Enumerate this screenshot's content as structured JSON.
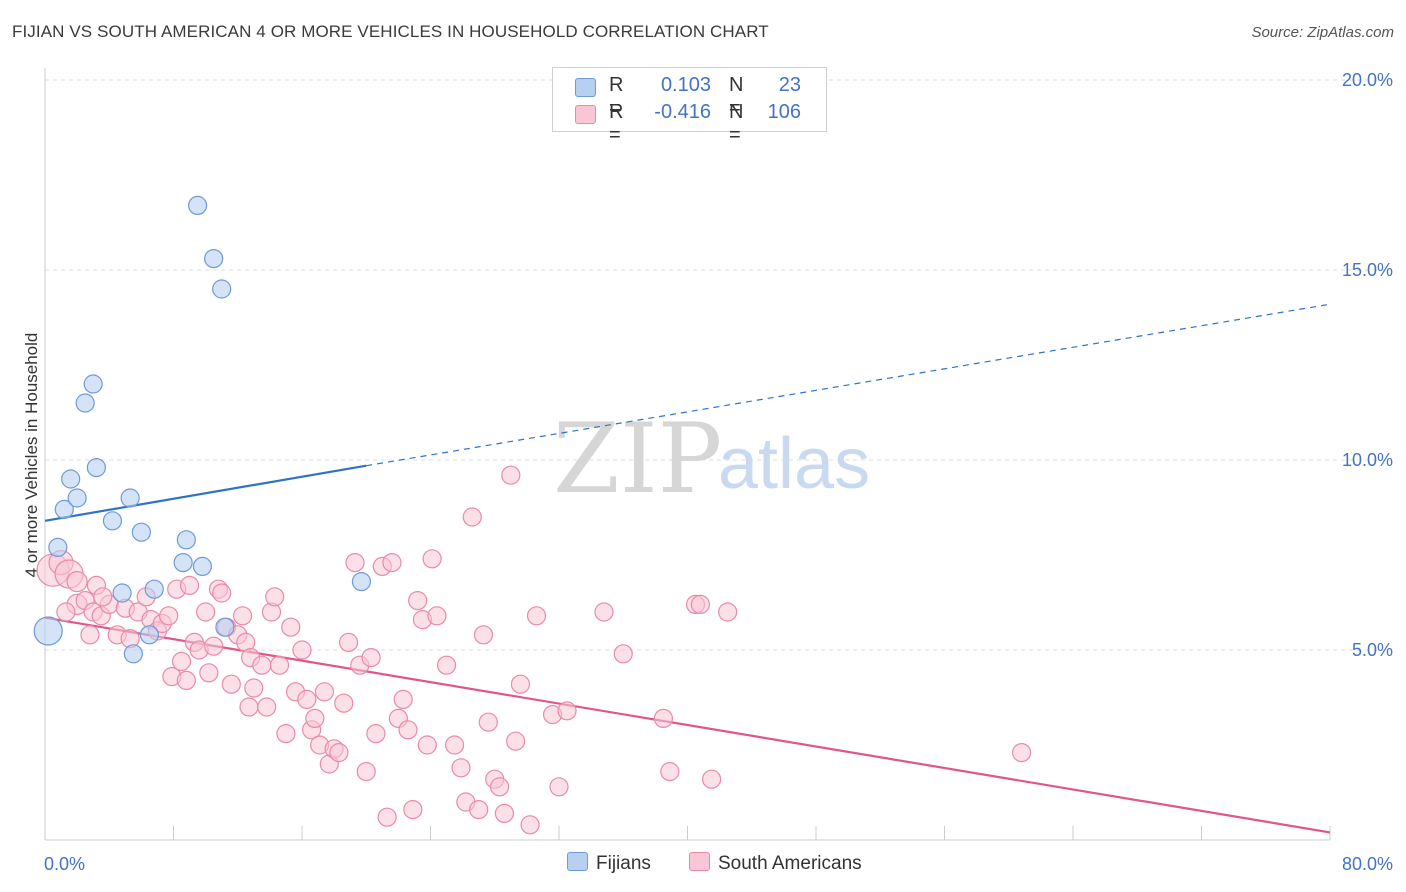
{
  "header": {
    "title": "FIJIAN VS SOUTH AMERICAN 4 OR MORE VEHICLES IN HOUSEHOLD CORRELATION CHART",
    "source": "Source: ZipAtlas.com"
  },
  "watermark": {
    "zip": "ZIP",
    "atlas": "atlas"
  },
  "legend": {
    "rows": [
      {
        "r_label": "R =",
        "r_value": "0.103",
        "n_label": "N =",
        "n_value": "23",
        "color": "#a9c4ea"
      },
      {
        "r_label": "R =",
        "r_value": "-0.416",
        "n_label": "N =",
        "n_value": "106",
        "color": "#f6b7c9"
      }
    ]
  },
  "bottom_legend": {
    "fijians": "Fijians",
    "south_americans": "South Americans"
  },
  "colors": {
    "fijian_fill": "#b8d0f0",
    "fijian_stroke": "#6f9ad8",
    "fijian_line": "#2f72c8",
    "sa_fill": "#f9c6d5",
    "sa_stroke": "#e98aa8",
    "sa_line": "#e0558a",
    "tick": "#4472c4",
    "grid": "#dddddd"
  },
  "chart_data": {
    "type": "scatter",
    "title": "FIJIAN VS SOUTH AMERICAN 4 OR MORE VEHICLES IN HOUSEHOLD CORRELATION CHART",
    "xlabel": "",
    "ylabel": "4 or more Vehicles in Household",
    "xlim": [
      0,
      80
    ],
    "ylim": [
      0,
      20
    ],
    "x_tick_labels": [
      "0.0%",
      "80.0%"
    ],
    "y_ticks": [
      5,
      10,
      15,
      20
    ],
    "y_tick_labels": [
      "5.0%",
      "10.0%",
      "15.0%",
      "20.0%"
    ],
    "grid": true,
    "series": [
      {
        "name": "Fijians",
        "r": 0.103,
        "n": 23,
        "points": [
          [
            0.2,
            5.5,
            14
          ],
          [
            0.8,
            7.7,
            9
          ],
          [
            1.2,
            8.7,
            9
          ],
          [
            1.6,
            9.5,
            9
          ],
          [
            2.0,
            9.0,
            9
          ],
          [
            2.5,
            11.5,
            9
          ],
          [
            3.0,
            12.0,
            9
          ],
          [
            3.2,
            9.8,
            9
          ],
          [
            4.2,
            8.4,
            9
          ],
          [
            4.8,
            6.5,
            9
          ],
          [
            5.3,
            9.0,
            9
          ],
          [
            6.0,
            8.1,
            9
          ],
          [
            6.5,
            5.4,
            9
          ],
          [
            5.5,
            4.9,
            9
          ],
          [
            6.8,
            6.6,
            9
          ],
          [
            8.6,
            7.3,
            9
          ],
          [
            8.8,
            7.9,
            9
          ],
          [
            9.5,
            16.7,
            9
          ],
          [
            9.8,
            7.2,
            9
          ],
          [
            10.5,
            15.3,
            9
          ],
          [
            11.0,
            14.5,
            9
          ],
          [
            11.2,
            5.6,
            9
          ],
          [
            19.7,
            6.8,
            9
          ]
        ],
        "trend": {
          "x0": 0,
          "y0": 8.4,
          "x_solid_end": 20,
          "y_solid_end": 9.85,
          "x1": 80,
          "y1": 14.1
        }
      },
      {
        "name": "South Americans",
        "r": -0.416,
        "n": 106,
        "points": [
          [
            0.5,
            7.1,
            16
          ],
          [
            1.0,
            7.3,
            12
          ],
          [
            1.5,
            7.0,
            14
          ],
          [
            2.0,
            6.8,
            10
          ],
          [
            2.0,
            6.2,
            10
          ],
          [
            2.5,
            6.3,
            9
          ],
          [
            3.0,
            6.0,
            9
          ],
          [
            3.2,
            6.7,
            9
          ],
          [
            3.5,
            5.9,
            9
          ],
          [
            4.0,
            6.2,
            9
          ],
          [
            4.5,
            5.4,
            9
          ],
          [
            5.0,
            6.1,
            9
          ],
          [
            5.3,
            5.3,
            9
          ],
          [
            5.8,
            6.0,
            9
          ],
          [
            6.3,
            6.4,
            9
          ],
          [
            6.6,
            5.8,
            9
          ],
          [
            7.0,
            5.5,
            9
          ],
          [
            7.3,
            5.7,
            9
          ],
          [
            7.7,
            5.9,
            9
          ],
          [
            7.9,
            4.3,
            9
          ],
          [
            8.2,
            6.6,
            9
          ],
          [
            8.5,
            4.7,
            9
          ],
          [
            8.8,
            4.2,
            9
          ],
          [
            9.0,
            6.7,
            9
          ],
          [
            9.3,
            5.2,
            9
          ],
          [
            9.6,
            5.0,
            9
          ],
          [
            10.0,
            6.0,
            9
          ],
          [
            10.2,
            4.4,
            9
          ],
          [
            10.5,
            5.1,
            9
          ],
          [
            10.8,
            6.6,
            9
          ],
          [
            11.0,
            6.5,
            9
          ],
          [
            11.3,
            5.6,
            9
          ],
          [
            11.6,
            4.1,
            9
          ],
          [
            12.0,
            5.4,
            9
          ],
          [
            12.3,
            5.9,
            9
          ],
          [
            12.5,
            5.2,
            9
          ],
          [
            12.8,
            4.8,
            9
          ],
          [
            13.0,
            4.0,
            9
          ],
          [
            13.5,
            4.6,
            9
          ],
          [
            13.8,
            3.5,
            9
          ],
          [
            14.1,
            6.0,
            9
          ],
          [
            14.3,
            6.4,
            9
          ],
          [
            14.6,
            4.6,
            9
          ],
          [
            15.0,
            2.8,
            9
          ],
          [
            15.3,
            5.6,
            9
          ],
          [
            15.6,
            3.9,
            9
          ],
          [
            16.0,
            5.0,
            9
          ],
          [
            16.3,
            3.7,
            9
          ],
          [
            16.6,
            2.9,
            9
          ],
          [
            16.8,
            3.2,
            9
          ],
          [
            17.1,
            2.5,
            9
          ],
          [
            17.4,
            3.9,
            9
          ],
          [
            17.7,
            2.0,
            9
          ],
          [
            18.0,
            2.4,
            9
          ],
          [
            18.3,
            2.3,
            9
          ],
          [
            18.6,
            3.6,
            9
          ],
          [
            18.9,
            5.2,
            9
          ],
          [
            19.3,
            7.3,
            9
          ],
          [
            19.6,
            4.6,
            9
          ],
          [
            20.0,
            1.8,
            9
          ],
          [
            20.3,
            4.8,
            9
          ],
          [
            20.6,
            2.8,
            9
          ],
          [
            21.0,
            7.2,
            9
          ],
          [
            21.3,
            0.6,
            9
          ],
          [
            21.6,
            7.3,
            9
          ],
          [
            22.0,
            3.2,
            9
          ],
          [
            22.3,
            3.7,
            9
          ],
          [
            22.6,
            2.9,
            9
          ],
          [
            22.9,
            0.8,
            9
          ],
          [
            23.2,
            6.3,
            9
          ],
          [
            23.5,
            5.8,
            9
          ],
          [
            23.8,
            2.5,
            9
          ],
          [
            24.1,
            7.4,
            9
          ],
          [
            24.4,
            5.9,
            9
          ],
          [
            25.0,
            4.6,
            9
          ],
          [
            25.5,
            2.5,
            9
          ],
          [
            25.9,
            1.9,
            9
          ],
          [
            26.2,
            1.0,
            9
          ],
          [
            26.6,
            8.5,
            9
          ],
          [
            27.0,
            0.8,
            9
          ],
          [
            27.3,
            5.4,
            9
          ],
          [
            27.6,
            3.1,
            9
          ],
          [
            28.0,
            1.6,
            9
          ],
          [
            28.3,
            1.4,
            9
          ],
          [
            28.6,
            0.7,
            9
          ],
          [
            29.0,
            9.6,
            9
          ],
          [
            29.3,
            2.6,
            9
          ],
          [
            29.6,
            4.1,
            9
          ],
          [
            30.2,
            0.4,
            9
          ],
          [
            30.6,
            5.9,
            9
          ],
          [
            31.6,
            3.3,
            9
          ],
          [
            32.0,
            1.4,
            9
          ],
          [
            32.5,
            3.4,
            9
          ],
          [
            34.8,
            6.0,
            9
          ],
          [
            36.0,
            4.9,
            9
          ],
          [
            38.5,
            3.2,
            9
          ],
          [
            38.9,
            1.8,
            9
          ],
          [
            40.5,
            6.2,
            9
          ],
          [
            40.8,
            6.2,
            9
          ],
          [
            41.5,
            1.6,
            9
          ],
          [
            42.5,
            6.0,
            9
          ],
          [
            60.8,
            2.3,
            9
          ],
          [
            1.3,
            6.0,
            9
          ],
          [
            2.8,
            5.4,
            9
          ],
          [
            3.6,
            6.4,
            9
          ],
          [
            12.7,
            3.5,
            9
          ]
        ],
        "trend": {
          "x0": 0,
          "y0": 5.85,
          "x1": 80,
          "y1": 0.2
        }
      }
    ]
  }
}
